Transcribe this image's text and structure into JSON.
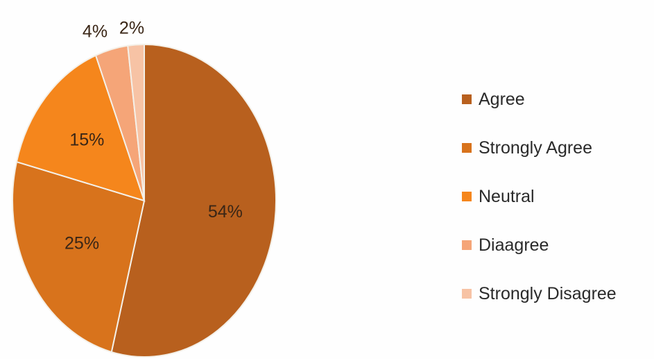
{
  "chart_data": {
    "type": "pie",
    "title": "",
    "slices": [
      {
        "label": "Agree",
        "value": 54,
        "value_label": "54%",
        "color": "#b8601e"
      },
      {
        "label": "Strongly Agree",
        "value": 25,
        "value_label": "25%",
        "color": "#d8731c"
      },
      {
        "label": "Neutral",
        "value": 15,
        "value_label": "15%",
        "color": "#f5861c"
      },
      {
        "label": "Diaagree",
        "value": 4,
        "value_label": "4%",
        "color": "#f5a578"
      },
      {
        "label": "Strongly Disagree",
        "value": 2,
        "value_label": "2%",
        "color": "#f7c3a5"
      }
    ],
    "start": "12 o'clock",
    "direction": "clockwise",
    "legend_position": "right"
  }
}
